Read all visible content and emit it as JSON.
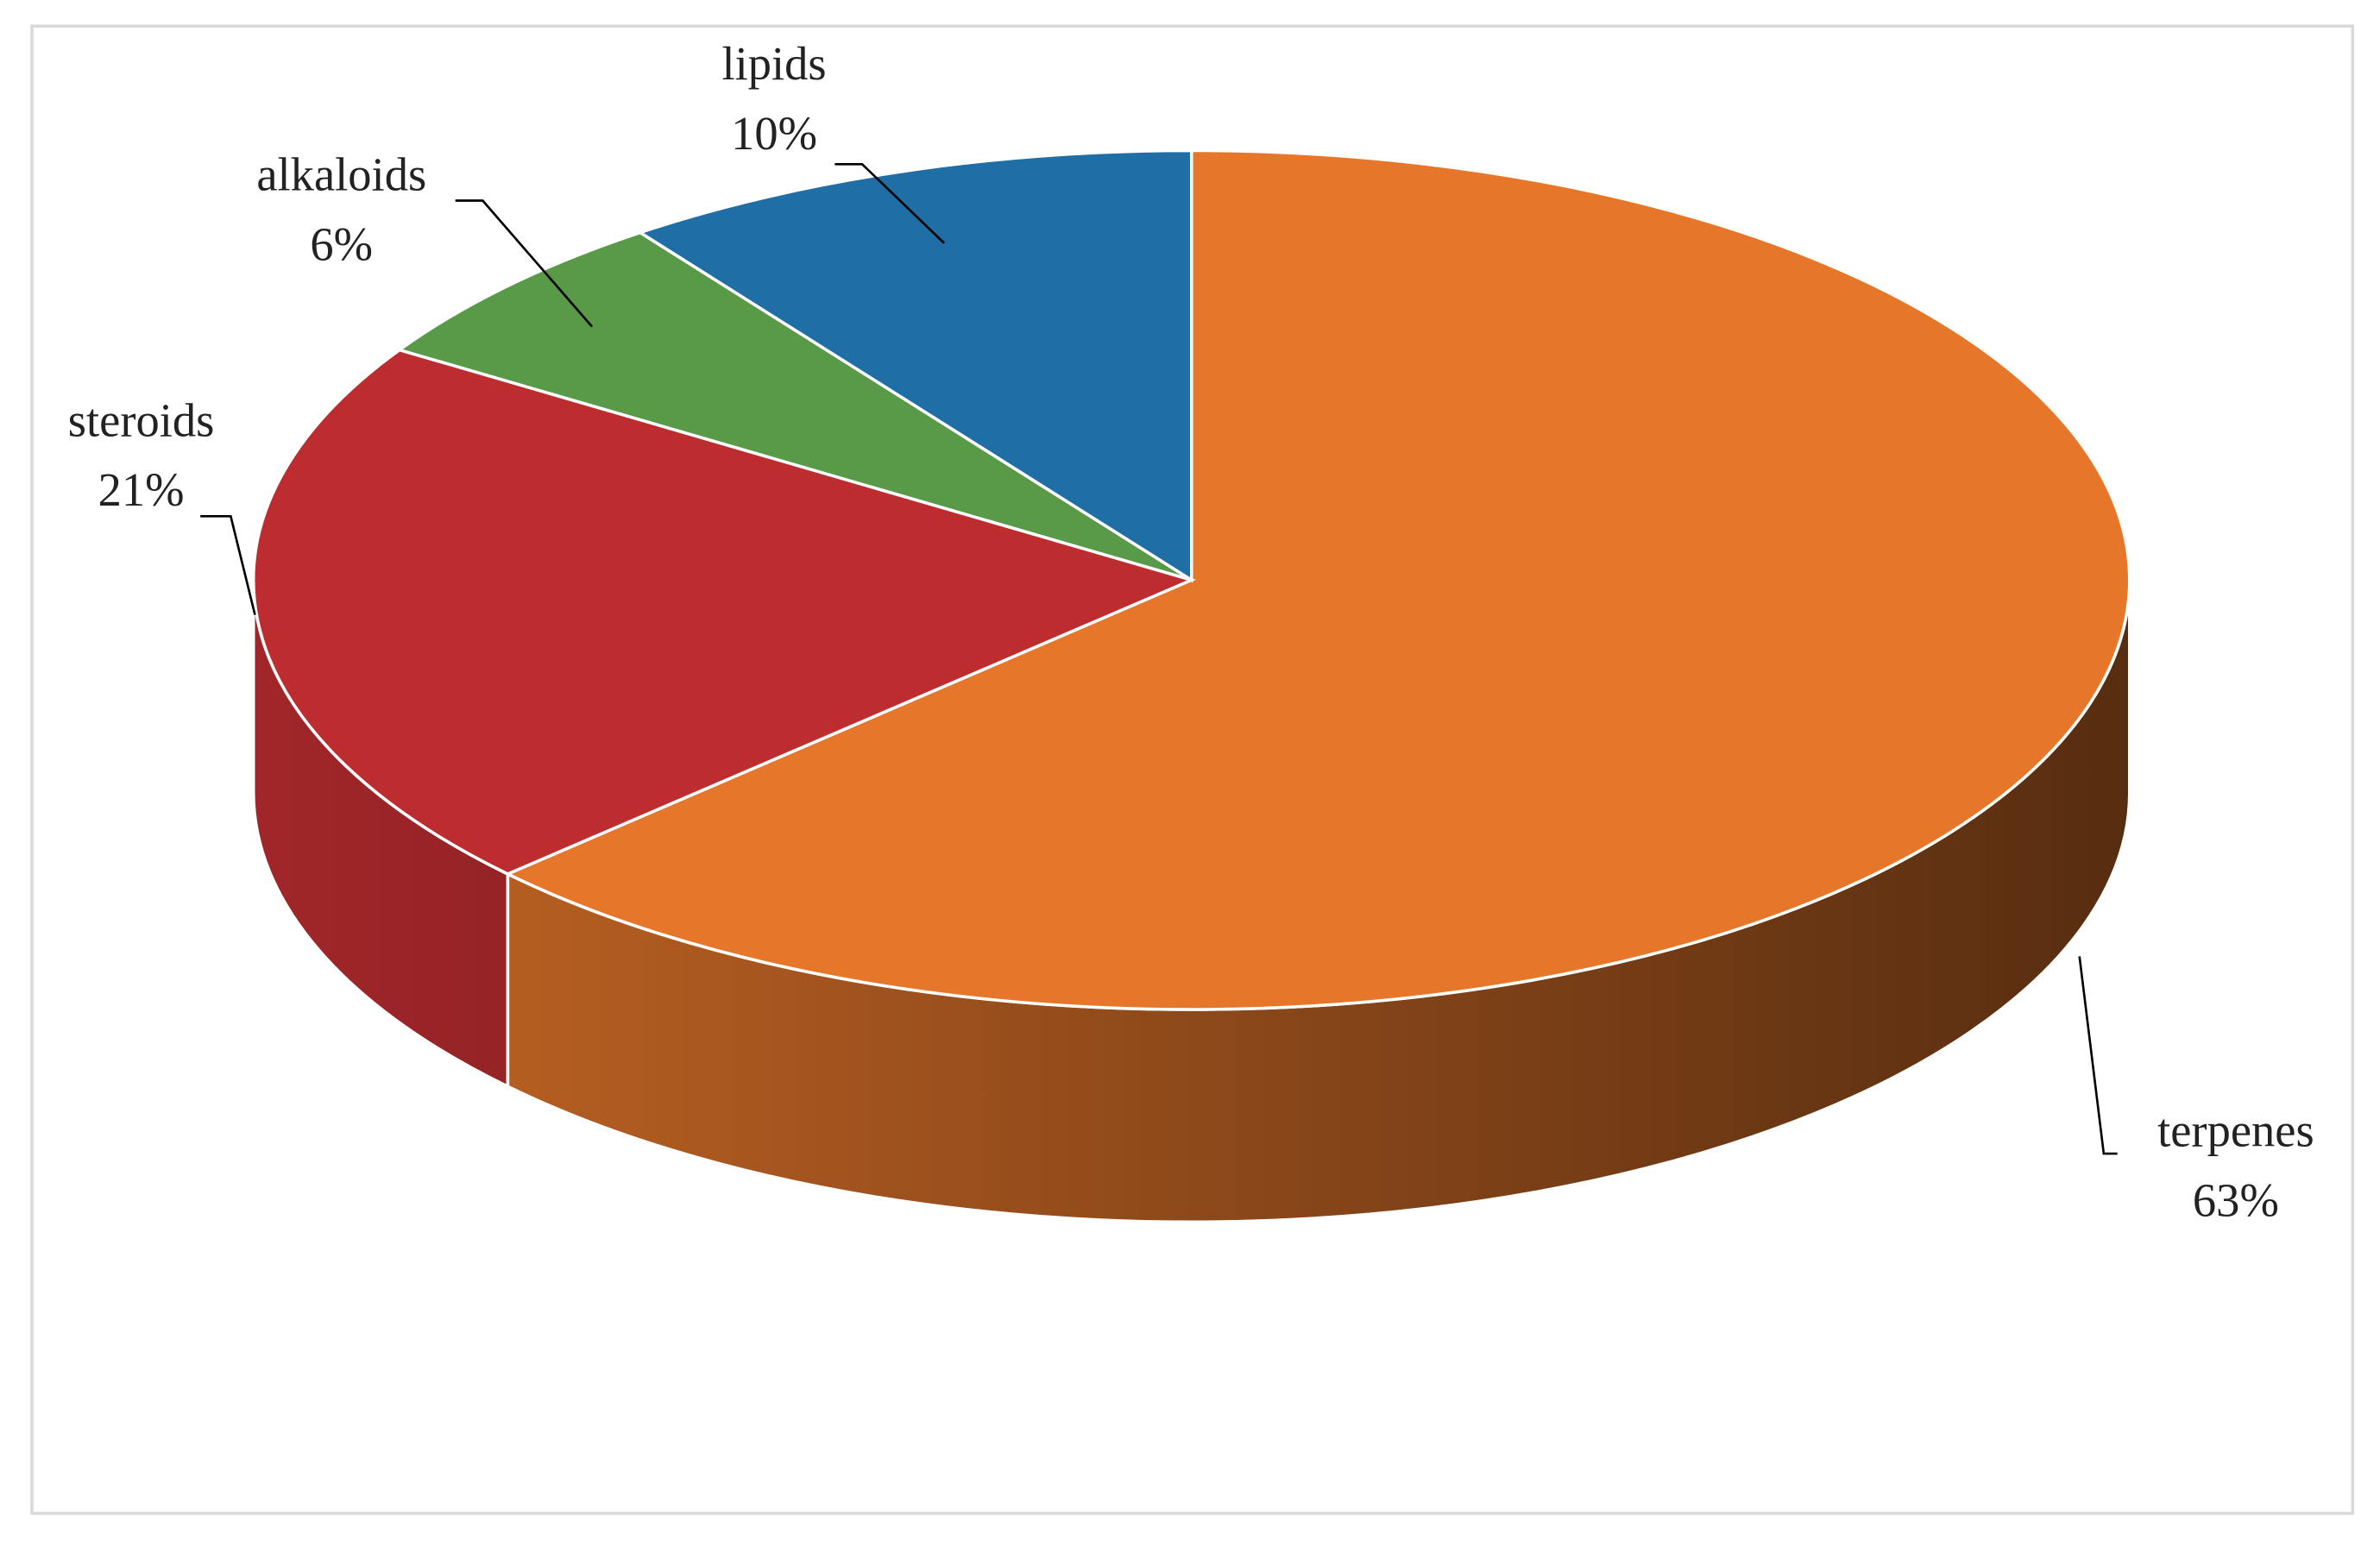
{
  "chart_data": {
    "type": "pie",
    "categories": [
      "terpenes",
      "steroids",
      "alkaloids",
      "lipids"
    ],
    "values": [
      63,
      21,
      6,
      10
    ],
    "value_labels": [
      "63%",
      "21%",
      "6%",
      "10%"
    ],
    "colors": [
      "#e6772a",
      "#bd2d30",
      "#589a47",
      "#1f6fa6"
    ]
  }
}
